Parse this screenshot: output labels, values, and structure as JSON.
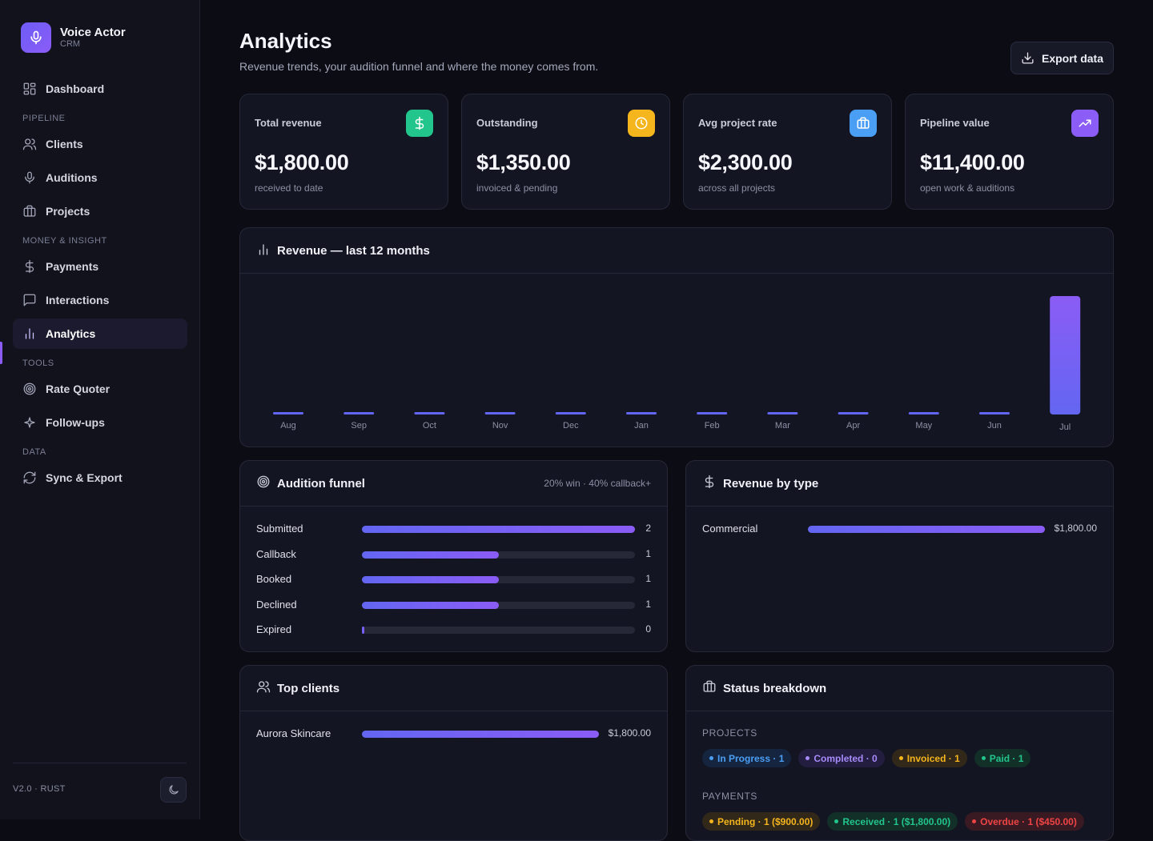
{
  "app": {
    "name": "Voice Actor",
    "subtitle": "CRM"
  },
  "sidebar": {
    "items": [
      {
        "label": "Dashboard",
        "icon": "grid-icon"
      },
      {
        "section": "PIPELINE"
      },
      {
        "label": "Clients",
        "icon": "users-icon"
      },
      {
        "label": "Auditions",
        "icon": "microphone-icon"
      },
      {
        "label": "Projects",
        "icon": "briefcase-icon"
      },
      {
        "section": "MONEY & INSIGHT"
      },
      {
        "label": "Payments",
        "icon": "dollar-icon"
      },
      {
        "label": "Interactions",
        "icon": "message-icon"
      },
      {
        "label": "Analytics",
        "icon": "bar-chart-icon",
        "active": true
      },
      {
        "section": "TOOLS"
      },
      {
        "label": "Rate Quoter",
        "icon": "target-icon"
      },
      {
        "label": "Follow-ups",
        "icon": "sparkle-icon"
      },
      {
        "section": "DATA"
      },
      {
        "label": "Sync & Export",
        "icon": "refresh-icon"
      }
    ],
    "version": "V2.0 · RUST",
    "theme_icon": "moon-icon"
  },
  "header": {
    "title": "Analytics",
    "subtitle": "Revenue trends, your audition funnel and where the money comes from.",
    "export_label": "Export data"
  },
  "stats": [
    {
      "label": "Total revenue",
      "value": "$1,800.00",
      "note": "received to date",
      "icon": "dollar-icon",
      "color": "#22c58b"
    },
    {
      "label": "Outstanding",
      "value": "$1,350.00",
      "note": "invoiced & pending",
      "icon": "clock-icon",
      "color": "#f5b51c"
    },
    {
      "label": "Avg project rate",
      "value": "$2,300.00",
      "note": "across all projects",
      "icon": "briefcase-icon",
      "color": "#4a9ff5"
    },
    {
      "label": "Pipeline value",
      "value": "$11,400.00",
      "note": "open work & auditions",
      "icon": "trending-up-icon",
      "color": "#8b5cf6"
    }
  ],
  "revenue_card": {
    "title": "Revenue — last 12 months",
    "icon": "bar-chart-icon"
  },
  "chart_data": {
    "type": "bar",
    "title": "Revenue — last 12 months",
    "categories": [
      "Aug",
      "Sep",
      "Oct",
      "Nov",
      "Dec",
      "Jan",
      "Feb",
      "Mar",
      "Apr",
      "May",
      "Jun",
      "Jul"
    ],
    "values": [
      0,
      0,
      0,
      0,
      0,
      0,
      0,
      0,
      0,
      0,
      0,
      1800
    ],
    "ylim": [
      0,
      1800
    ],
    "grid": false,
    "legend": "none",
    "colors": {
      "bar_start": "#6366f1",
      "bar_end": "#8b5cf6"
    }
  },
  "funnel": {
    "title": "Audition funnel",
    "icon": "target-icon",
    "meta": "20% win · 40% callback+",
    "max": 2,
    "rows": [
      {
        "label": "Submitted",
        "value": 2,
        "display": "2"
      },
      {
        "label": "Callback",
        "value": 1,
        "display": "1"
      },
      {
        "label": "Booked",
        "value": 1,
        "display": "1"
      },
      {
        "label": "Declined",
        "value": 1,
        "display": "1"
      },
      {
        "label": "Expired",
        "value": 0,
        "display": "0"
      }
    ]
  },
  "revenue_by_type": {
    "title": "Revenue by type",
    "icon": "dollar-icon",
    "max": 1800,
    "rows": [
      {
        "label": "Commercial",
        "value": 1800,
        "display": "$1,800.00"
      }
    ]
  },
  "top_clients": {
    "title": "Top clients",
    "icon": "users-icon",
    "max": 1800,
    "rows": [
      {
        "label": "Aurora Skincare",
        "value": 1800,
        "display": "$1,800.00"
      }
    ]
  },
  "status_breakdown": {
    "title": "Status breakdown",
    "icon": "briefcase-icon",
    "projects_label": "PROJECTS",
    "projects": [
      {
        "label": "In Progress · 1",
        "color": "#4a9ff5",
        "bg": "#16253f"
      },
      {
        "label": "Completed · 0",
        "color": "#a78bfa",
        "bg": "#231d40"
      },
      {
        "label": "Invoiced · 1",
        "color": "#f5b51c",
        "bg": "#32281a"
      },
      {
        "label": "Paid · 1",
        "color": "#22c58b",
        "bg": "#123028"
      }
    ],
    "payments_label": "PAYMENTS",
    "payments": [
      {
        "label": "Pending · 1 ($900.00)",
        "color": "#f5b51c",
        "bg": "#32281a"
      },
      {
        "label": "Received · 1 ($1,800.00)",
        "color": "#22c58b",
        "bg": "#123028"
      },
      {
        "label": "Overdue · 1 ($450.00)",
        "color": "#ef4444",
        "bg": "#3a1a22"
      }
    ]
  }
}
